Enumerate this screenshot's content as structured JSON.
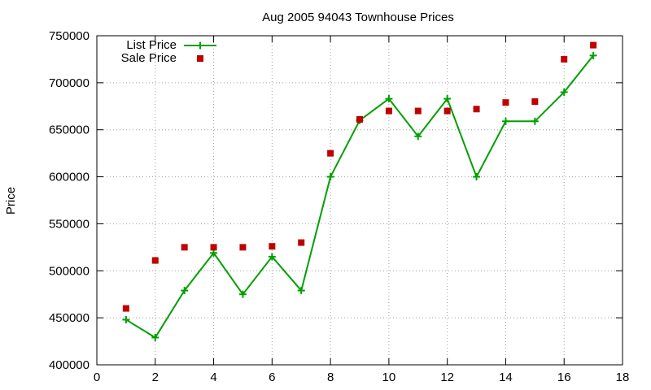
{
  "chart_data": {
    "type": "line",
    "title": "Aug 2005 94043 Townhouse Prices",
    "xlabel": "",
    "ylabel": "Price",
    "xlim": [
      0,
      18
    ],
    "ylim": [
      400000,
      750000
    ],
    "x_ticks": [
      0,
      2,
      4,
      6,
      8,
      10,
      12,
      14,
      16,
      18
    ],
    "y_ticks": [
      400000,
      450000,
      500000,
      550000,
      600000,
      650000,
      700000,
      750000
    ],
    "grid": true,
    "legend_position": "top-left",
    "series": [
      {
        "name": "List Price",
        "style": "lines+points",
        "marker": "plus",
        "color": "#00a000",
        "x": [
          1,
          2,
          3,
          4,
          5,
          6,
          7,
          8,
          9,
          10,
          11,
          12,
          13,
          14,
          15,
          16,
          17
        ],
        "y": [
          448000,
          429000,
          479000,
          519000,
          475000,
          515000,
          479000,
          600000,
          660000,
          683000,
          643000,
          683000,
          600000,
          659000,
          659000,
          690000,
          729000
        ]
      },
      {
        "name": "Sale Price",
        "style": "points",
        "marker": "square",
        "color": "#c00000",
        "x": [
          1,
          2,
          3,
          4,
          5,
          6,
          7,
          8,
          9,
          10,
          11,
          12,
          13,
          14,
          15,
          16,
          17
        ],
        "y": [
          460000,
          511000,
          525000,
          525000,
          525000,
          526000,
          530000,
          625000,
          661000,
          670000,
          670000,
          670000,
          672000,
          679000,
          680000,
          725000,
          740000
        ]
      }
    ]
  }
}
